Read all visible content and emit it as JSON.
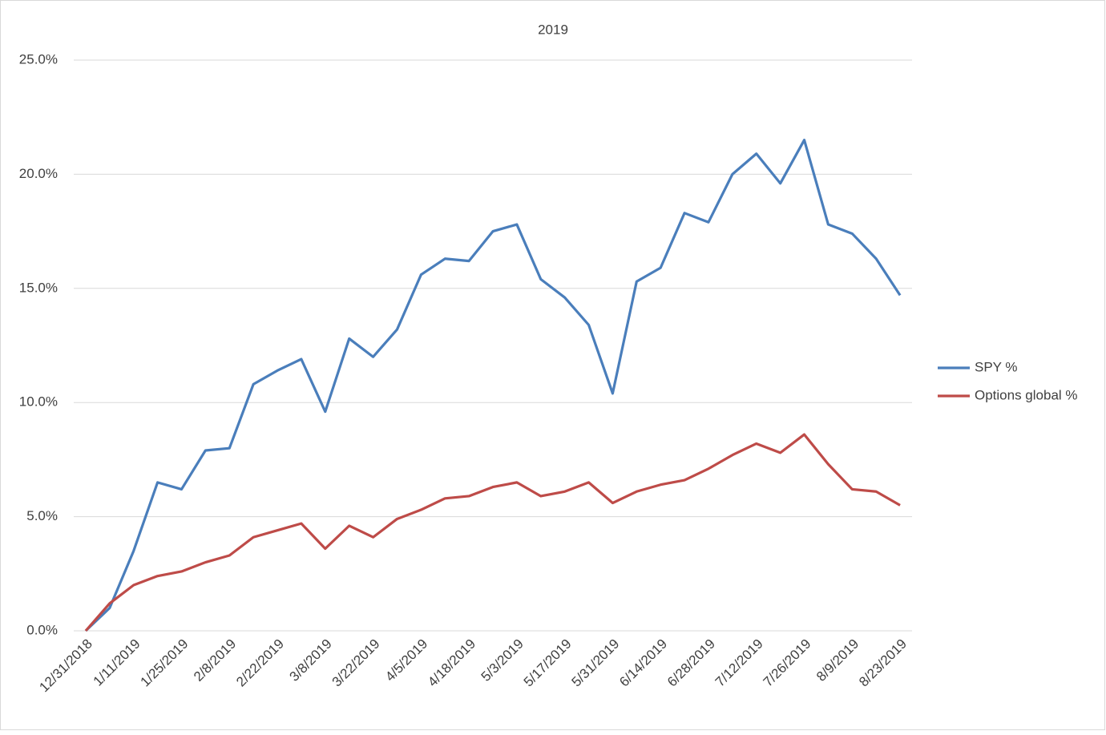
{
  "chart_data": {
    "type": "line",
    "title": "2019",
    "categories": [
      "12/31/2018",
      null,
      "1/11/2019",
      null,
      "1/25/2019",
      null,
      "2/8/2019",
      null,
      "2/22/2019",
      null,
      "3/8/2019",
      null,
      "3/22/2019",
      null,
      "4/5/2019",
      null,
      "4/18/2019",
      null,
      "5/3/2019",
      null,
      "5/17/2019",
      null,
      "5/31/2019",
      null,
      "6/14/2019",
      null,
      "6/28/2019",
      null,
      "7/12/2019",
      null,
      "7/26/2019",
      null,
      "8/9/2019",
      null,
      "8/23/2019"
    ],
    "series": [
      {
        "name": "SPY %",
        "color": "#4a7ebb",
        "values": [
          0,
          1.0,
          3.5,
          6.5,
          6.2,
          7.9,
          8.0,
          10.8,
          11.4,
          11.9,
          9.6,
          12.8,
          12.0,
          13.2,
          15.6,
          16.3,
          16.2,
          17.5,
          17.8,
          15.4,
          14.6,
          13.4,
          10.4,
          15.3,
          15.9,
          18.3,
          17.9,
          20.0,
          20.9,
          19.6,
          21.5,
          17.8,
          17.4,
          16.3,
          14.7
        ]
      },
      {
        "name": "Options global %",
        "color": "#be4b48",
        "values": [
          0,
          1.2,
          2.0,
          2.4,
          2.6,
          3.0,
          3.3,
          4.1,
          4.4,
          4.7,
          3.6,
          4.6,
          4.1,
          4.9,
          5.3,
          5.8,
          5.9,
          6.3,
          6.5,
          5.9,
          6.1,
          6.5,
          5.6,
          6.1,
          6.4,
          6.6,
          7.1,
          7.7,
          8.2,
          7.8,
          8.6,
          7.3,
          6.2,
          6.1,
          5.5
        ]
      }
    ],
    "ylim": [
      0,
      25
    ],
    "yticks": [
      {
        "value": 0,
        "label": "0.0%"
      },
      {
        "value": 5,
        "label": "5.0%"
      },
      {
        "value": 10,
        "label": "10.0%"
      },
      {
        "value": 15,
        "label": "15.0%"
      },
      {
        "value": 20,
        "label": "20.0%"
      },
      {
        "value": 25,
        "label": "25.0%"
      }
    ],
    "grid": true,
    "legend": "right"
  }
}
